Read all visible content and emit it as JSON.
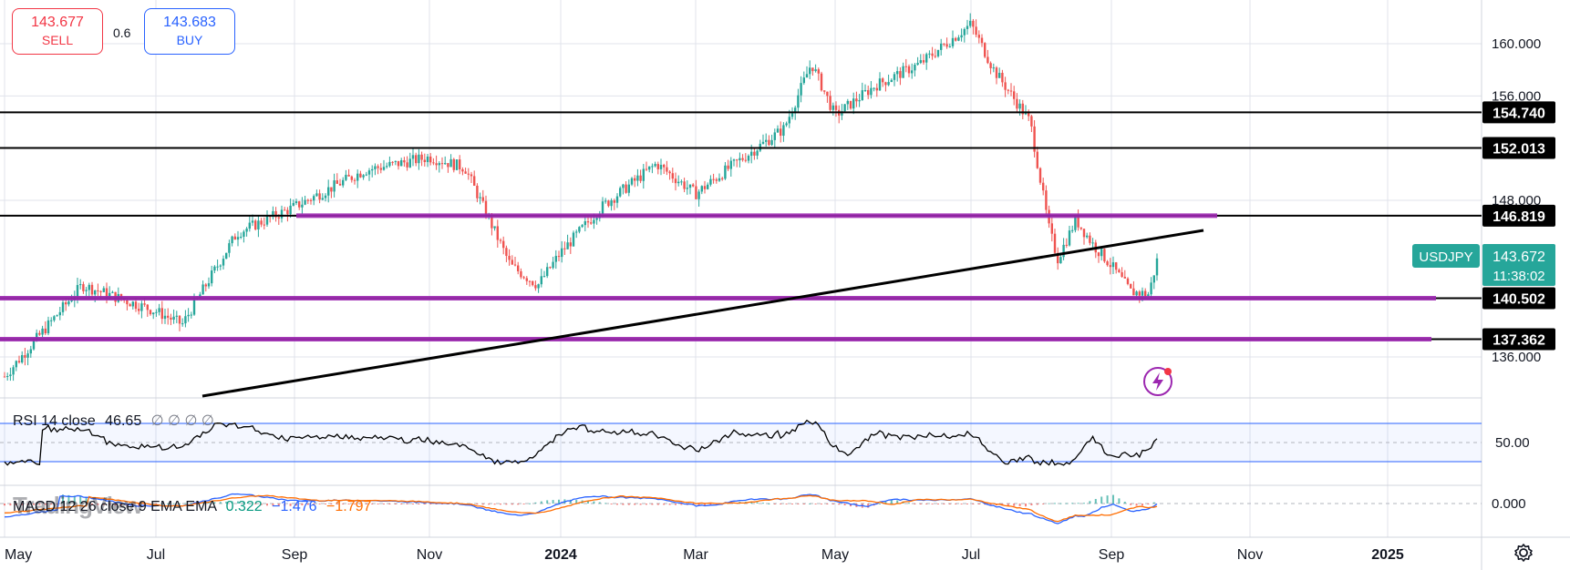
{
  "trade": {
    "sell_price": "143.677",
    "sell_label": "SELL",
    "buy_price": "143.683",
    "buy_label": "BUY",
    "spread": "0.6"
  },
  "price_axis": {
    "ticks": [
      "160.000",
      "156.000",
      "148.000",
      "136.000"
    ],
    "tick_values": [
      160,
      156,
      148,
      136
    ],
    "horizontal_levels": [
      {
        "label": "154.740",
        "value": 154.74,
        "color": "#000000"
      },
      {
        "label": "152.013",
        "value": 152.013,
        "color": "#000000"
      },
      {
        "label": "146.819",
        "value": 146.819,
        "color": "#000000"
      },
      {
        "label": "140.502",
        "value": 140.502,
        "color": "#000000"
      },
      {
        "label": "137.362",
        "value": 137.362,
        "color": "#000000"
      }
    ],
    "symbol_tag": {
      "symbol": "USDJPY",
      "price": "143.672",
      "countdown": "11:38:02",
      "color": "#26a69a"
    }
  },
  "time_axis": {
    "labels": [
      "May",
      "Jul",
      "Sep",
      "Nov",
      "2024",
      "Mar",
      "May",
      "Jul",
      "Sep",
      "Nov",
      "2025"
    ]
  },
  "rsi": {
    "legend_name": "RSI 14 close",
    "value": "46.65",
    "extra": "∅ ∅ ∅ ∅",
    "axis_label": "50.00"
  },
  "macd": {
    "legend_name": "MACD 12 26 close 9 EMA EMA",
    "hist": "0.322",
    "macd": "−1.476",
    "signal": "−1.797",
    "axis_label": "0.000"
  },
  "watermark": "TradingView",
  "colors": {
    "up": "#26a69a",
    "down": "#ef5350",
    "support": "#9c27b0",
    "trendline": "#000000",
    "rsi_band": "#2962ff",
    "macd_line": "#2962ff",
    "signal_line": "#ff6d00"
  },
  "icons": {
    "settings": "gear-icon",
    "flash": "lightning-icon"
  },
  "chart_data": {
    "type": "candlestick",
    "symbol": "USDJPY",
    "price_range": [
      134,
      162
    ],
    "anchor_closes": [
      {
        "date": "2023-05",
        "close": 134.5
      },
      {
        "date": "2023-06",
        "close": 141.5
      },
      {
        "date": "2023-07",
        "close": 139.5
      },
      {
        "date": "2023-08",
        "close": 146.0
      },
      {
        "date": "2023-09",
        "close": 149.0
      },
      {
        "date": "2023-11",
        "close": 151.5
      },
      {
        "date": "2023-12",
        "close": 142.0
      },
      {
        "date": "2024-01",
        "close": 146.5
      },
      {
        "date": "2024-03",
        "close": 151.0
      },
      {
        "date": "2024-04",
        "close": 154.5
      },
      {
        "date": "2024-05",
        "close": 156.5
      },
      {
        "date": "2024-06",
        "close": 158.5
      },
      {
        "date": "2024-07",
        "close": 161.5
      },
      {
        "date": "2024-08",
        "close": 143.5
      },
      {
        "date": "2024-09",
        "close": 141.0
      },
      {
        "date": "2024-09",
        "close": 143.672
      }
    ]
  }
}
